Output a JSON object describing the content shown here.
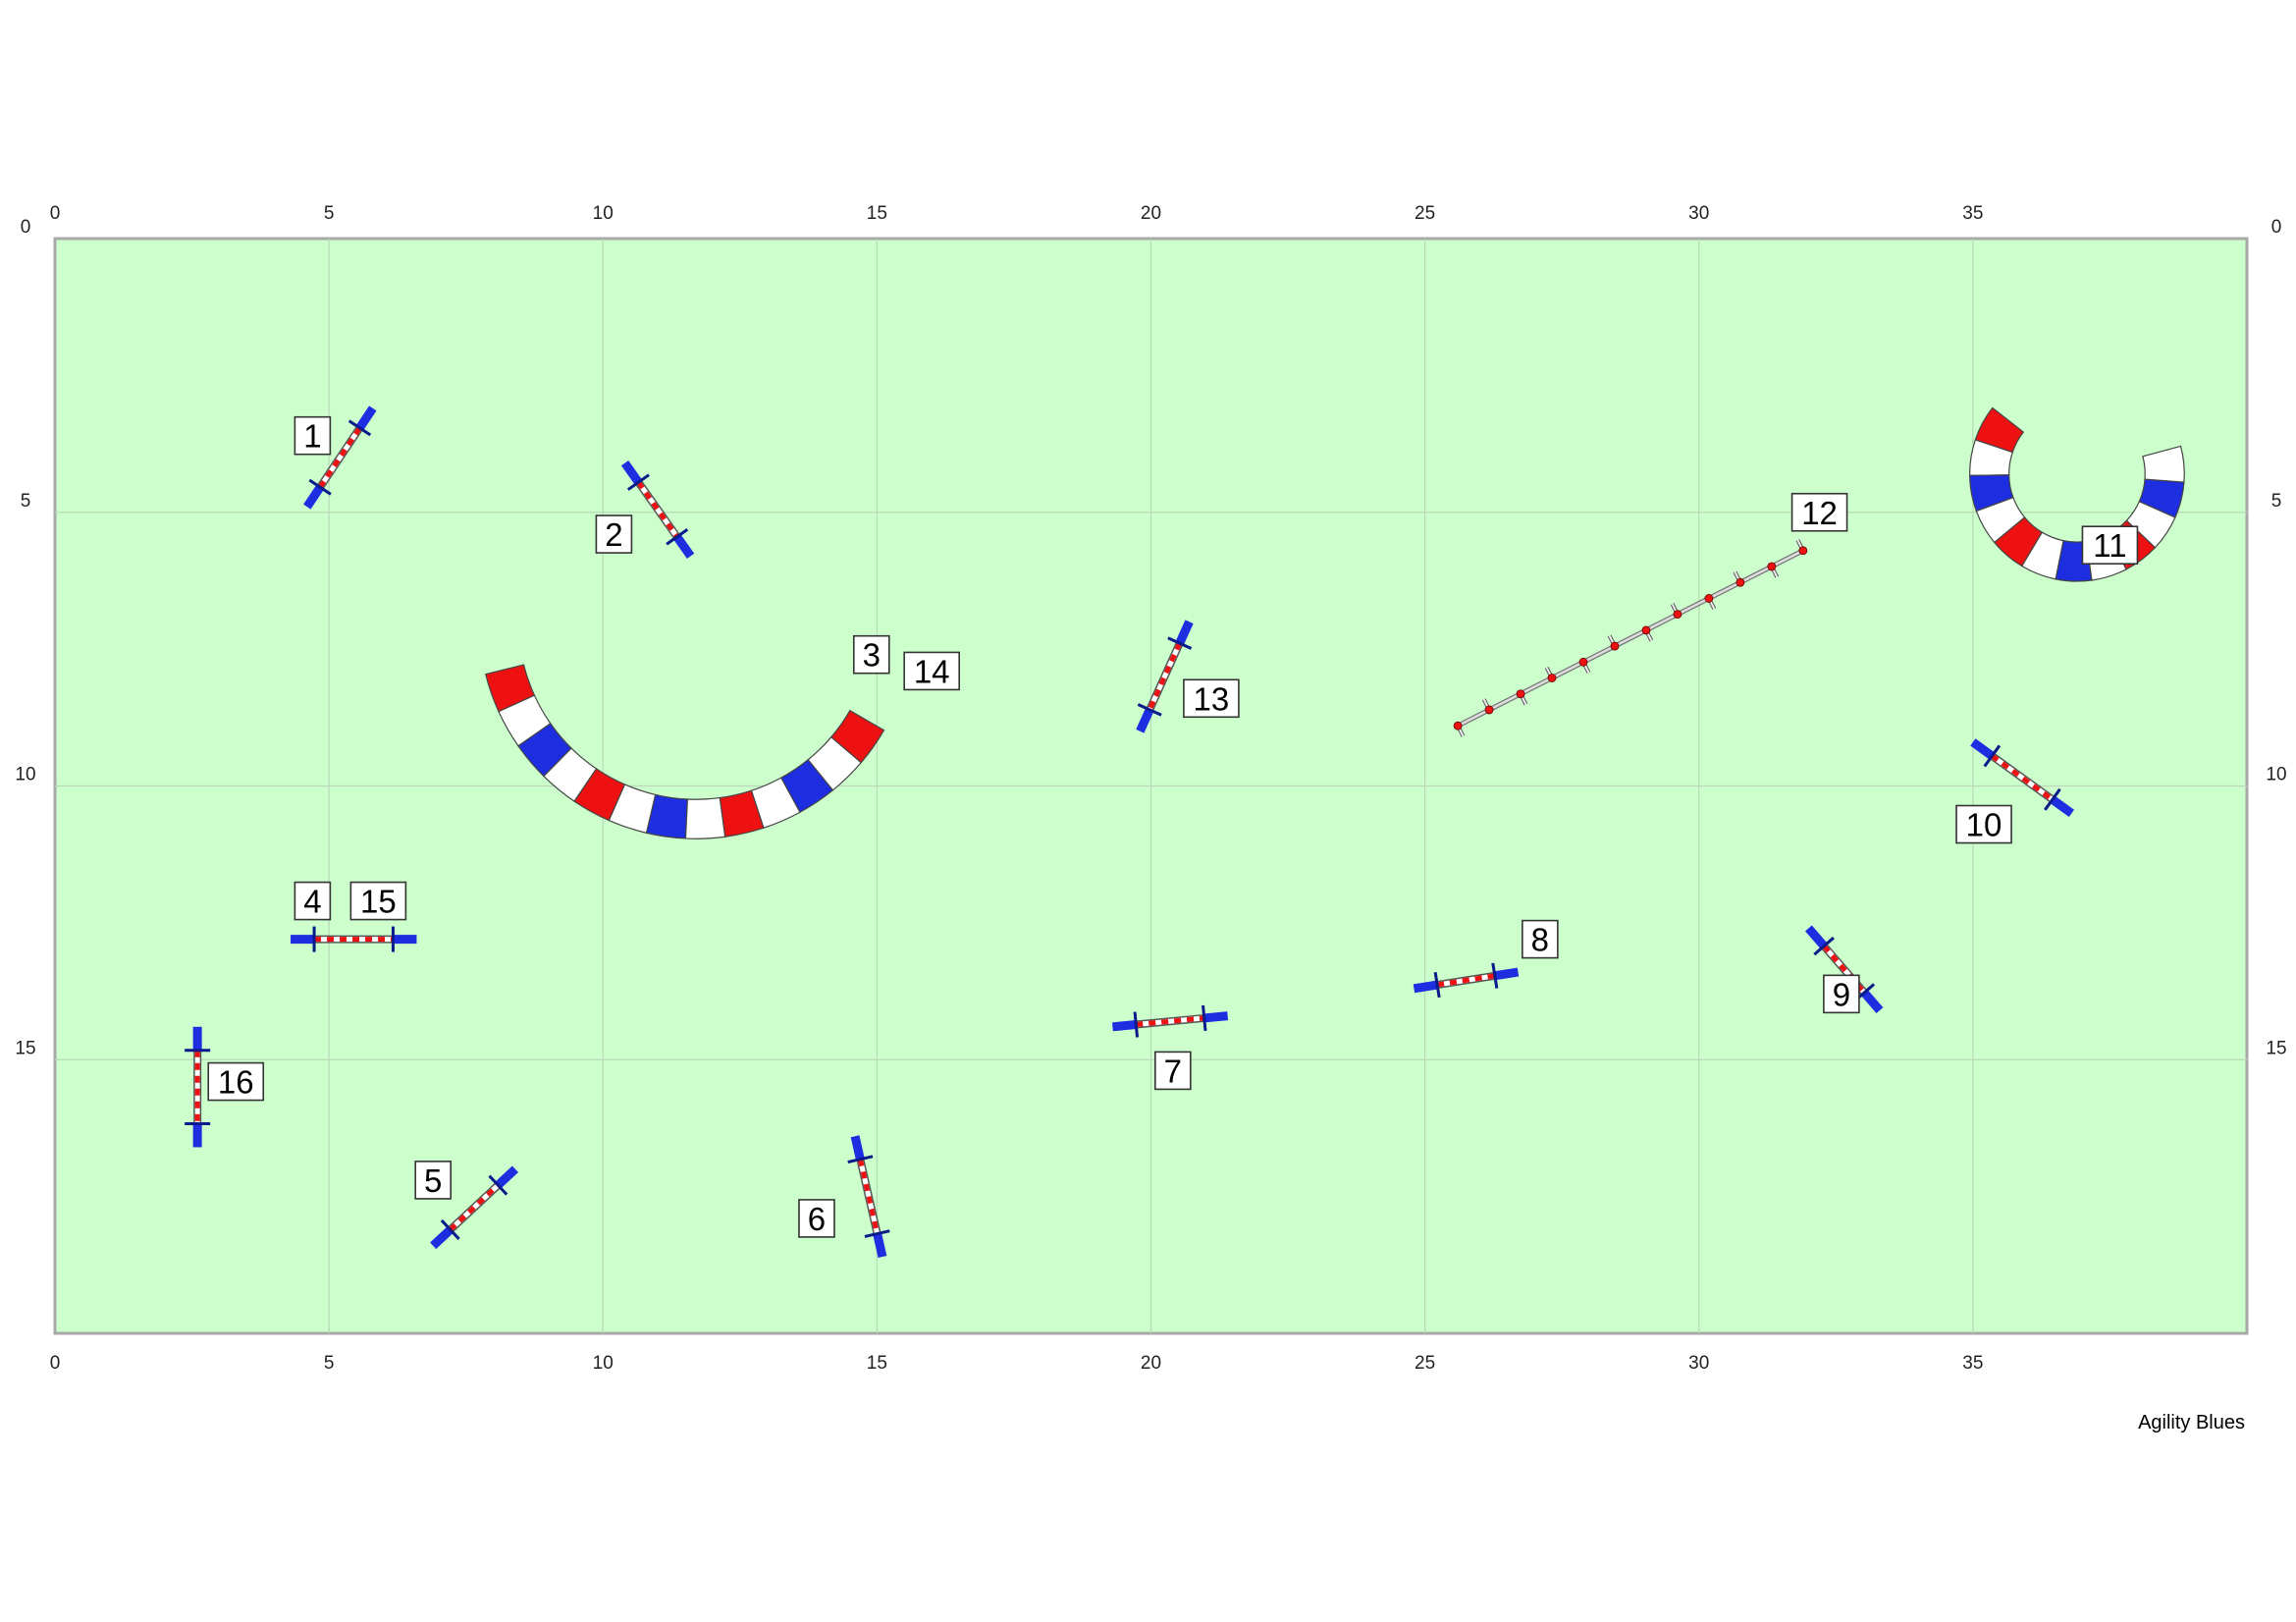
{
  "course": {
    "field_color": "#ccffcc",
    "grid_color": "#b8d8b8",
    "border_color": "#a8a8a8",
    "obstacle_colors": {
      "red": "#ee1111",
      "blue": "#1c2ee0",
      "white": "#ffffff"
    },
    "x_range": [
      0,
      40
    ],
    "y_range": [
      0,
      20
    ],
    "x_ticks": [
      "0",
      "5",
      "10",
      "15",
      "20",
      "25",
      "30",
      "35"
    ],
    "y_ticks": [
      "0",
      "5",
      "10",
      "15"
    ],
    "credit": "Agility Blues"
  },
  "jumps": [
    {
      "id": "jump-1",
      "from": [
        4.6,
        4.9
      ],
      "to": [
        5.8,
        3.1
      ]
    },
    {
      "id": "jump-2",
      "from": [
        10.4,
        4.1
      ],
      "to": [
        11.6,
        5.8
      ]
    },
    {
      "id": "jump-4-15",
      "from": [
        4.3,
        12.8
      ],
      "to": [
        6.6,
        12.8
      ]
    },
    {
      "id": "jump-5",
      "from": [
        6.9,
        18.4
      ],
      "to": [
        8.4,
        17.0
      ]
    },
    {
      "id": "jump-6",
      "from": [
        14.6,
        16.4
      ],
      "to": [
        15.1,
        18.6
      ]
    },
    {
      "id": "jump-7",
      "from": [
        19.3,
        14.4
      ],
      "to": [
        21.4,
        14.2
      ]
    },
    {
      "id": "jump-8",
      "from": [
        24.8,
        13.7
      ],
      "to": [
        26.7,
        13.4
      ]
    },
    {
      "id": "jump-9",
      "from": [
        32.0,
        12.6
      ],
      "to": [
        33.3,
        14.1
      ]
    },
    {
      "id": "jump-10",
      "from": [
        35.0,
        9.2
      ],
      "to": [
        36.8,
        10.5
      ]
    },
    {
      "id": "jump-13",
      "from": [
        20.7,
        7.0
      ],
      "to": [
        19.8,
        9.0
      ]
    },
    {
      "id": "jump-16",
      "from": [
        2.6,
        14.4
      ],
      "to": [
        2.6,
        16.6
      ]
    }
  ],
  "tunnels": [
    {
      "id": "tunnel-3-14",
      "center": [
        11.7,
        7.0
      ],
      "radius": 3.6,
      "start_angle": 166,
      "end_angle": 30,
      "segments": 13
    },
    {
      "id": "tunnel-11",
      "center": [
        36.9,
        4.3
      ],
      "radius": 1.6,
      "start_angle": 218,
      "end_angle": -15,
      "segments": 12
    }
  ],
  "weave": {
    "id": "weave-12",
    "from": [
      25.6,
      8.9
    ],
    "to": [
      31.9,
      5.7
    ],
    "poles": 12
  },
  "labels": [
    {
      "id": "label-1",
      "text": "1",
      "pos": [
        4.7,
        3.6
      ]
    },
    {
      "id": "label-2",
      "text": "2",
      "pos": [
        10.2,
        5.4
      ]
    },
    {
      "id": "label-3",
      "text": "3",
      "pos": [
        14.9,
        7.6
      ]
    },
    {
      "id": "label-14",
      "text": "14",
      "pos": [
        16.0,
        7.9
      ]
    },
    {
      "id": "label-4",
      "text": "4",
      "pos": [
        4.7,
        12.1
      ]
    },
    {
      "id": "label-15",
      "text": "15",
      "pos": [
        5.9,
        12.1
      ]
    },
    {
      "id": "label-16",
      "text": "16",
      "pos": [
        3.3,
        15.4
      ]
    },
    {
      "id": "label-5",
      "text": "5",
      "pos": [
        6.9,
        17.2
      ]
    },
    {
      "id": "label-6",
      "text": "6",
      "pos": [
        13.9,
        17.9
      ]
    },
    {
      "id": "label-7",
      "text": "7",
      "pos": [
        20.4,
        15.2
      ]
    },
    {
      "id": "label-8",
      "text": "8",
      "pos": [
        27.1,
        12.8
      ]
    },
    {
      "id": "label-9",
      "text": "9",
      "pos": [
        32.6,
        13.8
      ]
    },
    {
      "id": "label-10",
      "text": "10",
      "pos": [
        35.2,
        10.7
      ]
    },
    {
      "id": "label-11",
      "text": "11",
      "pos": [
        37.5,
        5.6
      ]
    },
    {
      "id": "label-12",
      "text": "12",
      "pos": [
        32.2,
        5.0
      ]
    },
    {
      "id": "label-13",
      "text": "13",
      "pos": [
        21.1,
        8.4
      ]
    }
  ]
}
